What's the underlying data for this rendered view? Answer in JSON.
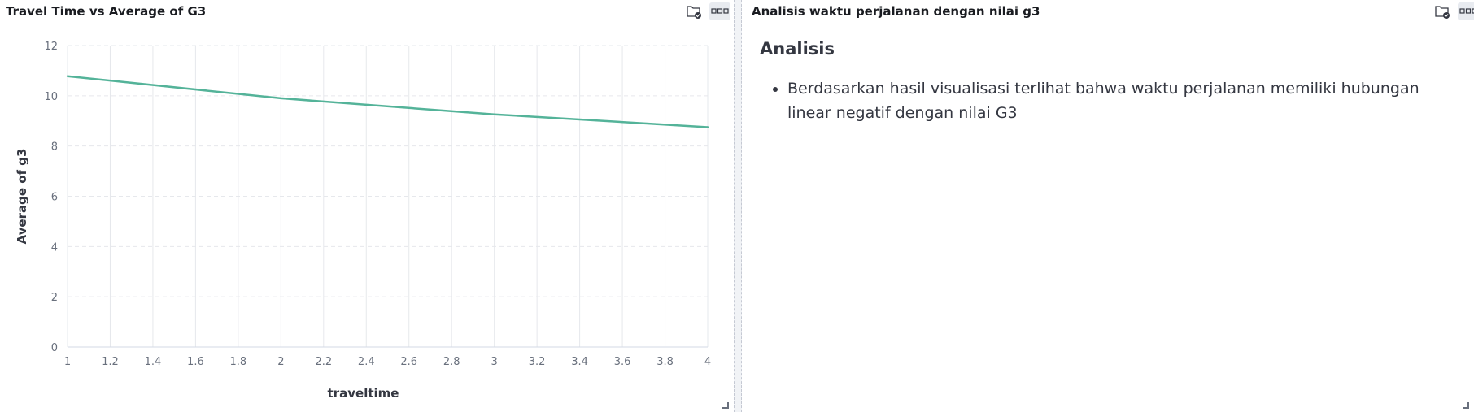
{
  "left_panel": {
    "title": "Travel Time vs Average of G3",
    "icons": [
      "folder-check-icon",
      "panel-options-icon"
    ]
  },
  "right_panel": {
    "title": "Analisis waktu perjalanan dengan nilai g3",
    "icons": [
      "folder-check-icon",
      "panel-options-icon"
    ],
    "heading": "Analisis",
    "bullets": [
      "Berdasarkan hasil visualisasi terlihat bahwa waktu perjalanan memiliki hubungan linear negatif dengan nilai G3"
    ]
  },
  "chart_data": {
    "type": "line",
    "title": "",
    "xlabel": "traveltime",
    "ylabel": "Average of g3",
    "xlim": [
      1,
      4
    ],
    "ylim": [
      0,
      12
    ],
    "x_ticks": [
      "1",
      "1.2",
      "1.4",
      "1.6",
      "1.8",
      "2",
      "2.2",
      "2.4",
      "2.6",
      "2.8",
      "3",
      "3.2",
      "3.4",
      "3.6",
      "3.8",
      "4"
    ],
    "y_ticks": [
      "0",
      "2",
      "4",
      "6",
      "8",
      "10",
      "12"
    ],
    "grid": true,
    "series": [
      {
        "x": [
          1,
          2,
          3,
          4
        ],
        "values": [
          10.78,
          9.9,
          9.26,
          8.75
        ],
        "color": "#54b399"
      }
    ]
  },
  "colors": {
    "series": "#54b399",
    "grid": "#e6e8ec",
    "axis_text": "#69707d"
  }
}
